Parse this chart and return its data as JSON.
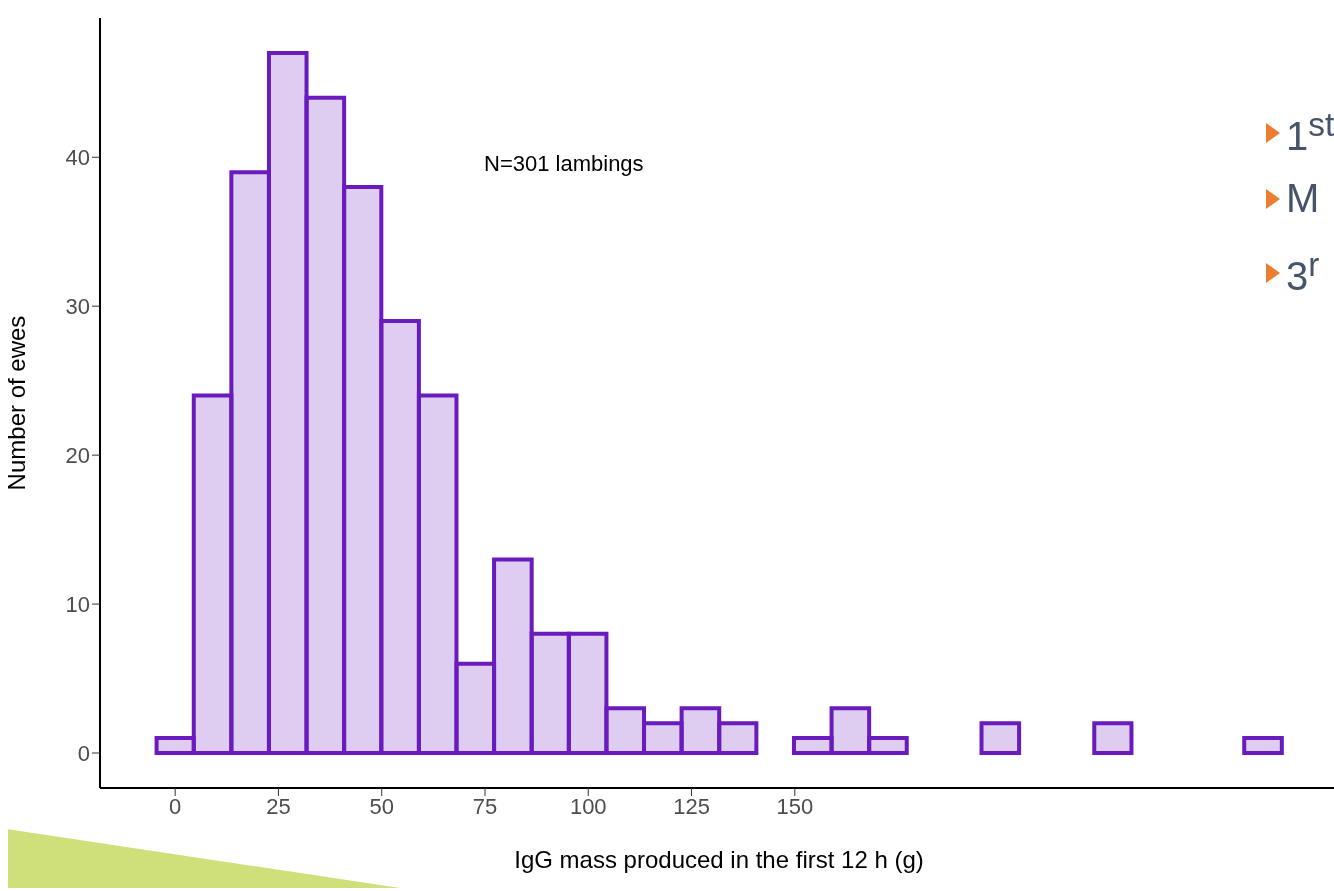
{
  "chart_data": {
    "type": "histogram",
    "xlabel": "IgG mass produced in the first 12 h (g)",
    "ylabel": "Number of ewes",
    "annotations": [
      "N=301 lambings",
      "1$^{st}$",
      "M",
      "3$^{r}$"
    ],
    "bins": [
      -4.5,
      4.5,
      13.6,
      22.7,
      31.8,
      40.9,
      49.9,
      59.0,
      68.1,
      77.2,
      86.3,
      95.3,
      104.4,
      113.5,
      122.6,
      131.7,
      140.7,
      149.8,
      158.9,
      168.0,
      177.1,
      186.1,
      195.2,
      204.3,
      213.4,
      222.5,
      231.5,
      240.6,
      249.7,
      258.8,
      267.9
    ],
    "values": [
      1,
      24,
      39,
      47,
      44,
      38,
      29,
      24,
      6,
      13,
      8,
      8,
      3,
      2,
      3,
      2,
      0,
      1,
      3,
      1,
      0,
      0,
      2,
      0,
      0,
      2,
      0,
      0,
      0,
      1
    ],
    "color": "#6a1bbd",
    "xlim": [
      -18.2,
      281.5
    ],
    "xticks": [
      0,
      25,
      50,
      75,
      100,
      125,
      150
    ],
    "ylim": [
      -2.35,
      49.35
    ],
    "yticks": [
      0,
      10,
      20,
      30,
      40
    ]
  }
}
